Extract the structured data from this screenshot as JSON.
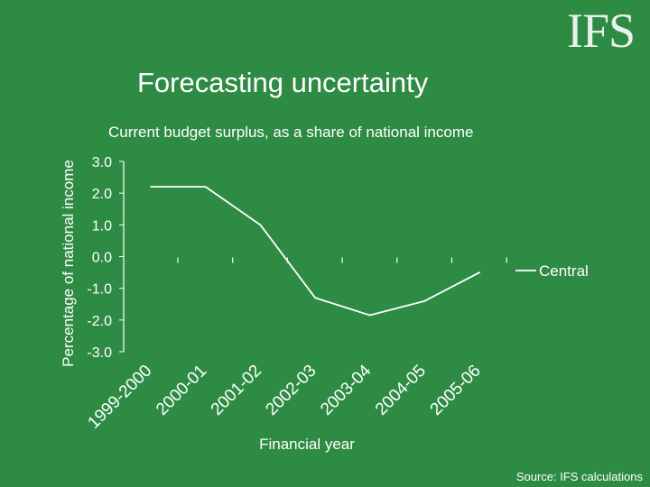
{
  "logo": "IFS",
  "title": "Forecasting uncertainty",
  "subtitle": "Current budget surplus, as a share of national income",
  "source": "Source: IFS calculations",
  "colors": {
    "background": "#2e8b43",
    "line": "#ffffff",
    "text": "#ffffff"
  },
  "chart_data": {
    "type": "line",
    "title": "Current budget surplus, as a share of national income",
    "xlabel": "Financial year",
    "ylabel": "Percentage of national income",
    "categories": [
      "1999-2000",
      "2000-01",
      "2001-02",
      "2002-03",
      "2003-04",
      "2004-05",
      "2005-06"
    ],
    "ylim": [
      -3.0,
      3.0
    ],
    "yticks": [
      "3.0",
      "2.0",
      "1.0",
      "0.0",
      "-1.0",
      "-2.0",
      "-3.0"
    ],
    "grid": false,
    "legend": "right",
    "series": [
      {
        "name": "Central",
        "points": [
          {
            "x": 0.0,
            "y": 2.2
          },
          {
            "x": 1.0,
            "y": 2.2
          },
          {
            "x": 2.0,
            "y": 1.0
          },
          {
            "x": 3.0,
            "y": -1.3
          },
          {
            "x": 4.0,
            "y": -1.85
          },
          {
            "x": 5.0,
            "y": -1.4
          },
          {
            "x": 6.0,
            "y": -0.5
          }
        ]
      }
    ]
  }
}
